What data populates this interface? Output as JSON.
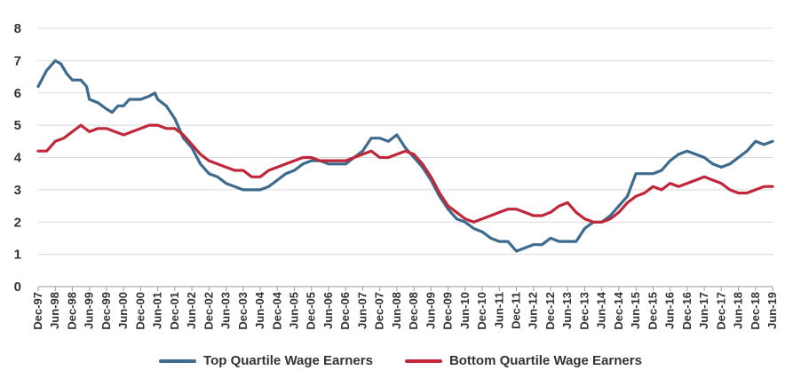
{
  "chart_data": {
    "type": "line",
    "title": "",
    "xlabel": "",
    "ylabel": "",
    "ylim": [
      0,
      8
    ],
    "yticks": [
      "0",
      "1",
      "2",
      "3",
      "4",
      "5",
      "6",
      "7",
      "8"
    ],
    "grid": "horizontal",
    "legend_position": "bottom",
    "x_start": "1997-12",
    "x_end": "2019-06",
    "x_tick_labels": [
      "Dec-97",
      "Jun-98",
      "Dec-98",
      "Jun-99",
      "Dec-99",
      "Jun-00",
      "Dec-00",
      "Jun-01",
      "Dec-01",
      "Jun-02",
      "Dec-02",
      "Jun-03",
      "Dec-03",
      "Jun-04",
      "Dec-04",
      "Jun-05",
      "Dec-05",
      "Jun-06",
      "Dec-06",
      "Jun-07",
      "Dec-07",
      "Jun-08",
      "Dec-08",
      "Jun-09",
      "Dec-09",
      "Jun-10",
      "Dec-10",
      "Jun-11",
      "Dec-11",
      "Jun-12",
      "Dec-12",
      "Jun-13",
      "Dec-13",
      "Jun-14",
      "Dec-14",
      "Jun-15",
      "Dec-15",
      "Jun-16",
      "Dec-16",
      "Jun-17",
      "Dec-17",
      "Jun-18",
      "Dec-18",
      "Jun-19"
    ],
    "series": [
      {
        "name": "Top Quartile Wage Earners",
        "color": "#3d6a8f",
        "points": [
          [
            "1997-12",
            6.2
          ],
          [
            "1998-03",
            6.7
          ],
          [
            "1998-06",
            7.0
          ],
          [
            "1998-08",
            6.9
          ],
          [
            "1998-10",
            6.6
          ],
          [
            "1998-12",
            6.4
          ],
          [
            "1999-03",
            6.4
          ],
          [
            "1999-05",
            6.2
          ],
          [
            "1999-06",
            5.8
          ],
          [
            "1999-09",
            5.7
          ],
          [
            "1999-12",
            5.5
          ],
          [
            "2000-02",
            5.4
          ],
          [
            "2000-04",
            5.6
          ],
          [
            "2000-06",
            5.6
          ],
          [
            "2000-08",
            5.8
          ],
          [
            "2000-12",
            5.8
          ],
          [
            "2001-03",
            5.9
          ],
          [
            "2001-05",
            6.0
          ],
          [
            "2001-06",
            5.8
          ],
          [
            "2001-09",
            5.6
          ],
          [
            "2001-12",
            5.2
          ],
          [
            "2002-03",
            4.6
          ],
          [
            "2002-06",
            4.3
          ],
          [
            "2002-09",
            3.8
          ],
          [
            "2002-12",
            3.5
          ],
          [
            "2003-03",
            3.4
          ],
          [
            "2003-06",
            3.2
          ],
          [
            "2003-09",
            3.1
          ],
          [
            "2003-12",
            3.0
          ],
          [
            "2004-03",
            3.0
          ],
          [
            "2004-06",
            3.0
          ],
          [
            "2004-09",
            3.1
          ],
          [
            "2004-12",
            3.3
          ],
          [
            "2005-03",
            3.5
          ],
          [
            "2005-06",
            3.6
          ],
          [
            "2005-09",
            3.8
          ],
          [
            "2005-12",
            3.9
          ],
          [
            "2006-03",
            3.9
          ],
          [
            "2006-06",
            3.8
          ],
          [
            "2006-09",
            3.8
          ],
          [
            "2006-12",
            3.8
          ],
          [
            "2007-03",
            4.0
          ],
          [
            "2007-06",
            4.2
          ],
          [
            "2007-09",
            4.6
          ],
          [
            "2007-12",
            4.6
          ],
          [
            "2008-03",
            4.5
          ],
          [
            "2008-06",
            4.7
          ],
          [
            "2008-09",
            4.3
          ],
          [
            "2008-12",
            4.0
          ],
          [
            "2009-03",
            3.7
          ],
          [
            "2009-06",
            3.3
          ],
          [
            "2009-09",
            2.8
          ],
          [
            "2009-12",
            2.4
          ],
          [
            "2010-03",
            2.1
          ],
          [
            "2010-06",
            2.0
          ],
          [
            "2010-09",
            1.8
          ],
          [
            "2010-12",
            1.7
          ],
          [
            "2011-03",
            1.5
          ],
          [
            "2011-06",
            1.4
          ],
          [
            "2011-09",
            1.4
          ],
          [
            "2011-12",
            1.1
          ],
          [
            "2012-03",
            1.2
          ],
          [
            "2012-06",
            1.3
          ],
          [
            "2012-09",
            1.3
          ],
          [
            "2012-12",
            1.5
          ],
          [
            "2013-03",
            1.4
          ],
          [
            "2013-06",
            1.4
          ],
          [
            "2013-09",
            1.4
          ],
          [
            "2013-12",
            1.8
          ],
          [
            "2014-03",
            2.0
          ],
          [
            "2014-06",
            2.0
          ],
          [
            "2014-09",
            2.2
          ],
          [
            "2014-12",
            2.5
          ],
          [
            "2015-03",
            2.8
          ],
          [
            "2015-06",
            3.5
          ],
          [
            "2015-09",
            3.5
          ],
          [
            "2015-12",
            3.5
          ],
          [
            "2016-03",
            3.6
          ],
          [
            "2016-06",
            3.9
          ],
          [
            "2016-09",
            4.1
          ],
          [
            "2016-12",
            4.2
          ],
          [
            "2017-03",
            4.1
          ],
          [
            "2017-06",
            4.0
          ],
          [
            "2017-09",
            3.8
          ],
          [
            "2017-12",
            3.7
          ],
          [
            "2018-03",
            3.8
          ],
          [
            "2018-06",
            4.0
          ],
          [
            "2018-09",
            4.2
          ],
          [
            "2018-12",
            4.5
          ],
          [
            "2019-03",
            4.4
          ],
          [
            "2019-06",
            4.5
          ]
        ]
      },
      {
        "name": "Bottom Quartile Wage Earners",
        "color": "#c1273a",
        "points": [
          [
            "1997-12",
            4.2
          ],
          [
            "1998-03",
            4.2
          ],
          [
            "1998-06",
            4.5
          ],
          [
            "1998-09",
            4.6
          ],
          [
            "1998-12",
            4.8
          ],
          [
            "1999-03",
            5.0
          ],
          [
            "1999-06",
            4.8
          ],
          [
            "1999-09",
            4.9
          ],
          [
            "1999-12",
            4.9
          ],
          [
            "2000-03",
            4.8
          ],
          [
            "2000-06",
            4.7
          ],
          [
            "2000-09",
            4.8
          ],
          [
            "2000-12",
            4.9
          ],
          [
            "2001-03",
            5.0
          ],
          [
            "2001-06",
            5.0
          ],
          [
            "2001-09",
            4.9
          ],
          [
            "2001-12",
            4.9
          ],
          [
            "2002-03",
            4.7
          ],
          [
            "2002-06",
            4.4
          ],
          [
            "2002-09",
            4.1
          ],
          [
            "2002-12",
            3.9
          ],
          [
            "2003-03",
            3.8
          ],
          [
            "2003-06",
            3.7
          ],
          [
            "2003-09",
            3.6
          ],
          [
            "2003-12",
            3.6
          ],
          [
            "2004-03",
            3.4
          ],
          [
            "2004-06",
            3.4
          ],
          [
            "2004-09",
            3.6
          ],
          [
            "2004-12",
            3.7
          ],
          [
            "2005-03",
            3.8
          ],
          [
            "2005-06",
            3.9
          ],
          [
            "2005-09",
            4.0
          ],
          [
            "2005-12",
            4.0
          ],
          [
            "2006-03",
            3.9
          ],
          [
            "2006-06",
            3.9
          ],
          [
            "2006-09",
            3.9
          ],
          [
            "2006-12",
            3.9
          ],
          [
            "2007-03",
            4.0
          ],
          [
            "2007-06",
            4.1
          ],
          [
            "2007-09",
            4.2
          ],
          [
            "2007-12",
            4.0
          ],
          [
            "2008-03",
            4.0
          ],
          [
            "2008-06",
            4.1
          ],
          [
            "2008-09",
            4.2
          ],
          [
            "2008-12",
            4.1
          ],
          [
            "2009-03",
            3.8
          ],
          [
            "2009-06",
            3.4
          ],
          [
            "2009-09",
            2.9
          ],
          [
            "2009-12",
            2.5
          ],
          [
            "2010-03",
            2.3
          ],
          [
            "2010-06",
            2.1
          ],
          [
            "2010-09",
            2.0
          ],
          [
            "2010-12",
            2.1
          ],
          [
            "2011-03",
            2.2
          ],
          [
            "2011-06",
            2.3
          ],
          [
            "2011-09",
            2.4
          ],
          [
            "2011-12",
            2.4
          ],
          [
            "2012-03",
            2.3
          ],
          [
            "2012-06",
            2.2
          ],
          [
            "2012-09",
            2.2
          ],
          [
            "2012-12",
            2.3
          ],
          [
            "2013-03",
            2.5
          ],
          [
            "2013-06",
            2.6
          ],
          [
            "2013-09",
            2.3
          ],
          [
            "2013-12",
            2.1
          ],
          [
            "2014-03",
            2.0
          ],
          [
            "2014-06",
            2.0
          ],
          [
            "2014-09",
            2.1
          ],
          [
            "2014-12",
            2.3
          ],
          [
            "2015-03",
            2.6
          ],
          [
            "2015-06",
            2.8
          ],
          [
            "2015-09",
            2.9
          ],
          [
            "2015-12",
            3.1
          ],
          [
            "2016-03",
            3.0
          ],
          [
            "2016-06",
            3.2
          ],
          [
            "2016-09",
            3.1
          ],
          [
            "2016-12",
            3.2
          ],
          [
            "2017-03",
            3.3
          ],
          [
            "2017-06",
            3.4
          ],
          [
            "2017-09",
            3.3
          ],
          [
            "2017-12",
            3.2
          ],
          [
            "2018-03",
            3.0
          ],
          [
            "2018-06",
            2.9
          ],
          [
            "2018-09",
            2.9
          ],
          [
            "2018-12",
            3.0
          ],
          [
            "2019-03",
            3.1
          ],
          [
            "2019-06",
            3.1
          ]
        ]
      }
    ]
  }
}
